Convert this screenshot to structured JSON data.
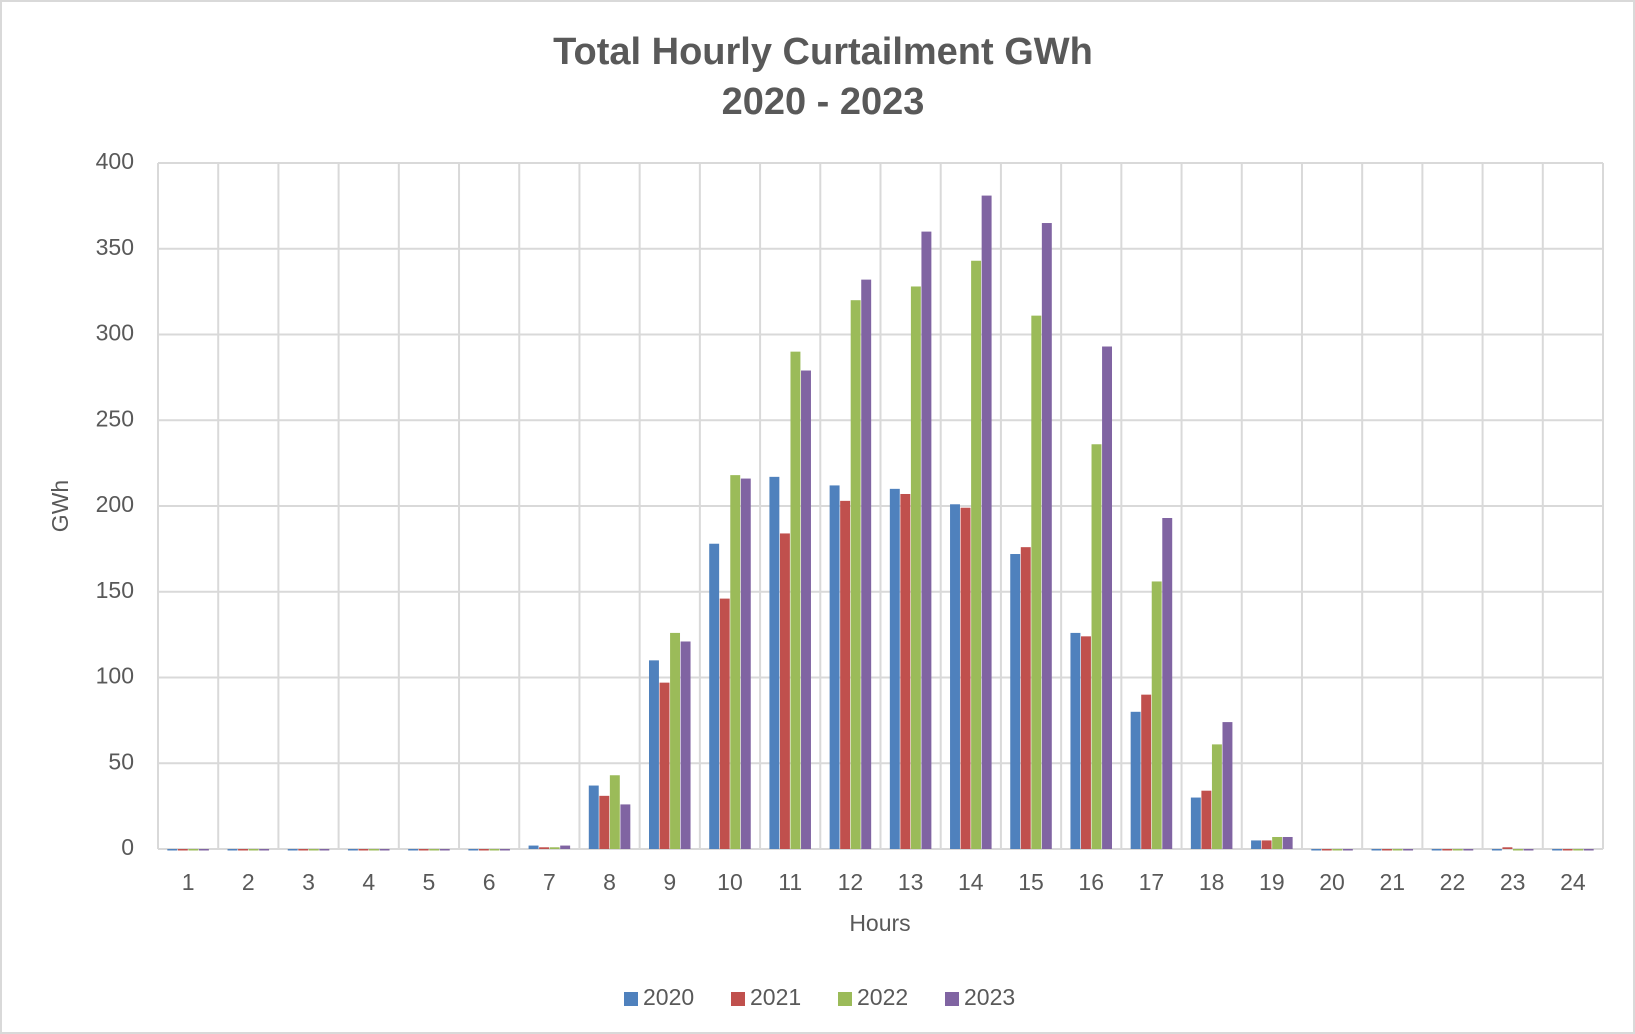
{
  "chart_data": {
    "type": "bar",
    "title": "Total Hourly Curtailment GWh",
    "subtitle": "2020 - 2023",
    "x_label": "Hours",
    "y_label": "GWh",
    "categories": [
      "1",
      "2",
      "3",
      "4",
      "5",
      "6",
      "7",
      "8",
      "9",
      "10",
      "11",
      "12",
      "13",
      "14",
      "15",
      "16",
      "17",
      "18",
      "19",
      "20",
      "21",
      "22",
      "23",
      "24"
    ],
    "series": [
      {
        "name": "2020",
        "color": "#4f81bd",
        "values": [
          0,
          0,
          0,
          0,
          0,
          0,
          2,
          37,
          110,
          178,
          217,
          212,
          210,
          201,
          172,
          126,
          80,
          30,
          5,
          0,
          0,
          0,
          0,
          0
        ]
      },
      {
        "name": "2021",
        "color": "#c0504d",
        "values": [
          0,
          0,
          0,
          0,
          0,
          0,
          1,
          31,
          97,
          146,
          184,
          203,
          207,
          199,
          176,
          124,
          90,
          34,
          5,
          0,
          0,
          0,
          1,
          0
        ]
      },
      {
        "name": "2022",
        "color": "#9bbb59",
        "values": [
          0,
          0,
          0,
          0,
          0,
          0,
          1,
          43,
          126,
          218,
          290,
          320,
          328,
          343,
          311,
          236,
          156,
          61,
          7,
          0,
          0,
          0,
          0,
          0
        ]
      },
      {
        "name": "2023",
        "color": "#8064a2",
        "values": [
          0,
          0,
          0,
          0,
          0,
          0,
          2,
          26,
          121,
          216,
          279,
          332,
          360,
          381,
          365,
          293,
          193,
          74,
          7,
          0,
          0,
          0,
          0,
          0
        ]
      }
    ],
    "ylim": [
      0,
      400
    ],
    "yticks": [
      0,
      50,
      100,
      150,
      200,
      250,
      300,
      350,
      400
    ],
    "grid": true,
    "legend": "bottom"
  }
}
